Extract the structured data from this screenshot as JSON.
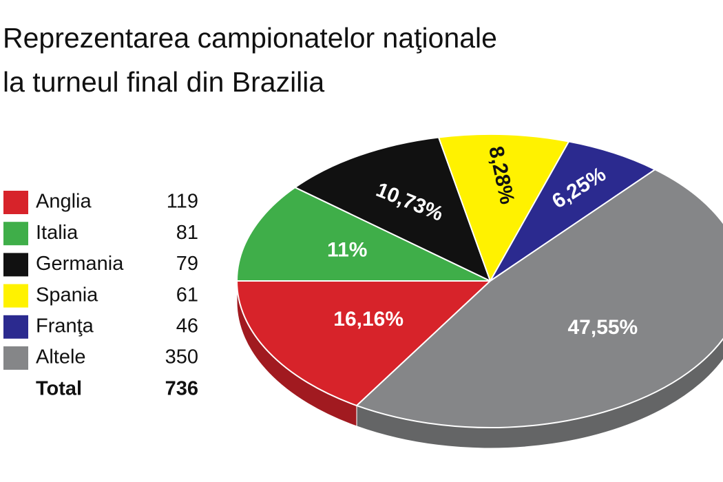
{
  "chart_data": {
    "type": "pie",
    "title": [
      "Reprezentarea campionatelor naţionale",
      "la turneul final din Brazilia"
    ],
    "categories": [
      "Anglia",
      "Italia",
      "Germania",
      "Spania",
      "Franţa",
      "Altele"
    ],
    "values": [
      16.16,
      11,
      10.73,
      8.28,
      6.25,
      47.55
    ],
    "value_labels": [
      "16,16%",
      "11%",
      "10,73%",
      "8,28%",
      "6,25%",
      "47,55%"
    ],
    "counts": [
      119,
      81,
      79,
      61,
      46,
      350
    ],
    "colors": [
      "#d7232a",
      "#3fae49",
      "#111111",
      "#fff200",
      "#2b2a8f",
      "#858688"
    ],
    "total_label": "Total",
    "total": 736
  }
}
